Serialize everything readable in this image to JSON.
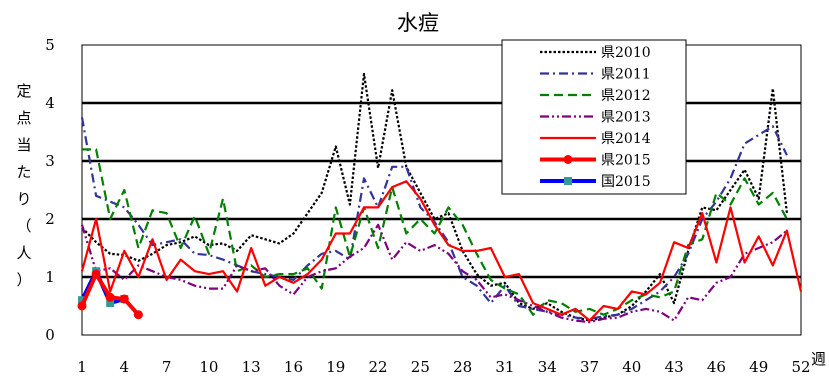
{
  "chart_data": {
    "type": "line",
    "title": "水痘",
    "ylabel": "定点当たり（人）",
    "xlabel": "週",
    "ylim": [
      0,
      5
    ],
    "yticks": [
      0,
      1,
      2,
      3,
      4,
      5
    ],
    "xticks": [
      1,
      4,
      7,
      10,
      13,
      16,
      19,
      22,
      25,
      28,
      31,
      34,
      37,
      40,
      43,
      46,
      49,
      52
    ],
    "gridlines": "horizontal",
    "legend_position": "top-right",
    "series": [
      {
        "name": "県2010",
        "color": "#000000",
        "dash": "dotted",
        "values": [
          1.85,
          1.6,
          1.4,
          1.38,
          1.28,
          1.4,
          1.55,
          1.6,
          1.7,
          1.55,
          1.58,
          1.45,
          1.72,
          1.65,
          1.58,
          1.75,
          2.1,
          2.45,
          3.25,
          2.25,
          4.5,
          2.88,
          4.22,
          2.9,
          2.45,
          2.0,
          2.1,
          1.45,
          1.05,
          0.85,
          0.9,
          0.55,
          0.45,
          0.55,
          0.4,
          0.3,
          0.25,
          0.3,
          0.35,
          0.5,
          0.75,
          1.05,
          0.55,
          1.45,
          2.2,
          2.15,
          2.5,
          2.85,
          2.35,
          4.25,
          2.1
        ]
      },
      {
        "name": "県2011",
        "color": "#333399",
        "dash": "dashdot",
        "values": [
          3.75,
          2.4,
          2.3,
          2.2,
          1.9,
          1.55,
          1.6,
          1.65,
          1.4,
          1.38,
          1.3,
          1.2,
          1.1,
          1.05,
          1.0,
          0.95,
          1.2,
          1.4,
          1.45,
          1.3,
          2.7,
          2.2,
          2.9,
          2.9,
          2.2,
          1.95,
          1.6,
          1.0,
          0.85,
          0.55,
          0.85,
          0.5,
          0.45,
          0.4,
          0.35,
          0.3,
          0.28,
          0.32,
          0.35,
          0.45,
          0.6,
          0.75,
          1.0,
          1.4,
          2.0,
          2.3,
          2.7,
          3.3,
          3.45,
          3.6,
          3.1
        ]
      },
      {
        "name": "県2012",
        "color": "#008000",
        "dash": "dashed",
        "values": [
          3.2,
          3.2,
          2.0,
          2.5,
          1.5,
          2.15,
          2.1,
          1.5,
          2.05,
          1.4,
          2.35,
          1.1,
          1.2,
          1.0,
          1.05,
          1.05,
          1.15,
          0.8,
          2.2,
          1.35,
          2.2,
          1.5,
          2.55,
          1.75,
          2.0,
          1.75,
          2.2,
          1.9,
          1.4,
          0.95,
          0.8,
          0.7,
          0.35,
          0.6,
          0.55,
          0.4,
          0.45,
          0.35,
          0.45,
          0.6,
          0.7,
          0.65,
          0.75,
          1.55,
          1.65,
          2.45,
          2.25,
          2.7,
          2.25,
          2.45,
          2.0
        ]
      },
      {
        "name": "県2013",
        "color": "#800080",
        "dash": "dashdotdot",
        "values": [
          1.9,
          1.1,
          1.15,
          0.95,
          1.2,
          1.1,
          1.0,
          0.95,
          0.85,
          0.8,
          0.8,
          1.2,
          1.1,
          1.15,
          0.85,
          0.7,
          1.0,
          1.1,
          1.15,
          1.35,
          1.5,
          1.9,
          1.3,
          1.6,
          1.45,
          1.55,
          1.4,
          1.1,
          0.95,
          0.65,
          0.7,
          0.6,
          0.5,
          0.4,
          0.3,
          0.25,
          0.22,
          0.28,
          0.3,
          0.4,
          0.45,
          0.4,
          0.25,
          0.65,
          0.6,
          0.9,
          1.0,
          1.4,
          1.5,
          1.6,
          1.8
        ]
      },
      {
        "name": "県2014",
        "color": "#ff0000",
        "dash": "solid",
        "values": [
          1.1,
          2.0,
          0.75,
          1.45,
          1.0,
          1.65,
          0.95,
          1.3,
          1.1,
          1.05,
          1.1,
          0.75,
          1.5,
          0.85,
          1.0,
          0.9,
          1.05,
          1.3,
          1.75,
          1.75,
          2.2,
          2.2,
          2.55,
          2.65,
          2.35,
          1.9,
          1.55,
          1.45,
          1.45,
          1.5,
          1.0,
          1.05,
          0.55,
          0.45,
          0.35,
          0.45,
          0.25,
          0.5,
          0.45,
          0.75,
          0.7,
          0.9,
          1.6,
          1.5,
          2.1,
          1.25,
          2.2,
          1.25,
          1.7,
          1.2,
          1.8,
          0.75
        ]
      },
      {
        "name": "県2015",
        "color": "#ff0000",
        "dash": "solid",
        "markers": "circle",
        "thick": true,
        "values": [
          0.5,
          1.05,
          0.65,
          0.62,
          0.35
        ]
      },
      {
        "name": "国2015",
        "color": "#0000ff",
        "dash": "solid",
        "markers": "square",
        "marker_color": "#339999",
        "thick": true,
        "values": [
          0.6,
          1.1,
          0.55,
          0.62
        ]
      }
    ]
  }
}
